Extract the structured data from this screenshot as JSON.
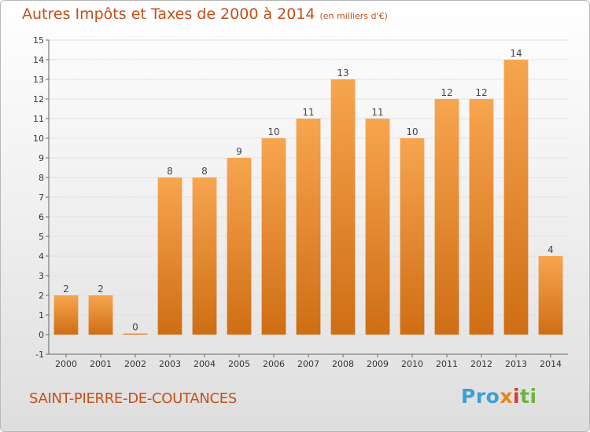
{
  "header": {
    "title": "Autres Impôts et Taxes de 2000 à 2014",
    "unit": "(en milliers d'€)"
  },
  "footer": {
    "commune": "SAINT-PIERRE-DE-COUTANCES",
    "logo": [
      "Pro",
      "x",
      "i",
      "ti"
    ]
  },
  "colors": {
    "bar_top": "#f7a54f",
    "bar_bottom": "#cf6e14",
    "title": "#c4501a"
  },
  "chart_data": {
    "type": "bar",
    "categories": [
      "2000",
      "2001",
      "2002",
      "2003",
      "2004",
      "2005",
      "2006",
      "2007",
      "2008",
      "2009",
      "2010",
      "2011",
      "2012",
      "2013",
      "2014"
    ],
    "values": [
      2,
      2,
      0,
      8,
      8,
      9,
      10,
      11,
      13,
      11,
      10,
      12,
      12,
      14,
      4
    ],
    "data_labels": [
      "2",
      "2",
      "0",
      "8",
      "8",
      "9",
      "10",
      "11",
      "13",
      "11",
      "10",
      "12",
      "12",
      "14",
      "4"
    ],
    "ylim": [
      -1,
      15
    ],
    "yticks": [
      -1,
      0,
      1,
      2,
      3,
      4,
      5,
      6,
      7,
      8,
      9,
      10,
      11,
      12,
      13,
      14,
      15
    ],
    "ytick_labels": [
      "-1",
      "0",
      "1",
      "2",
      "3",
      "4",
      "5",
      "6",
      "7",
      "8",
      "9",
      "10",
      "11",
      "12",
      "13",
      "14",
      "15"
    ],
    "grid": true,
    "legend": "none"
  }
}
